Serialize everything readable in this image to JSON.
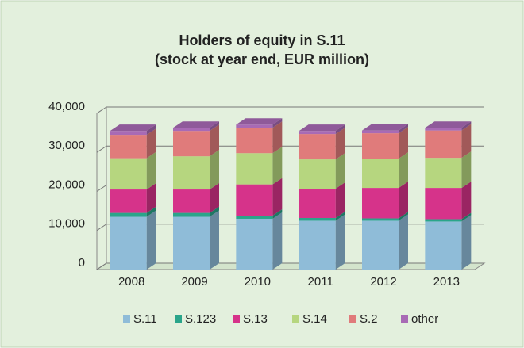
{
  "chart_data": {
    "type": "bar3d_stacked",
    "title": [
      "Holders of equity in S.11",
      "(stock at year end, EUR million)"
    ],
    "categories": [
      "2008",
      "2009",
      "2010",
      "2011",
      "2012",
      "2013"
    ],
    "series": [
      {
        "name": "S.11",
        "color": "#8fbcd8",
        "values": [
          13500,
          13500,
          13000,
          12500,
          12500,
          12300
        ]
      },
      {
        "name": "S.123",
        "color": "#2aa58a",
        "values": [
          1000,
          1000,
          800,
          700,
          600,
          600
        ]
      },
      {
        "name": "S.13",
        "color": "#d6338a",
        "values": [
          6000,
          6000,
          8000,
          7500,
          7800,
          8000
        ]
      },
      {
        "name": "S.14",
        "color": "#b6d67f",
        "values": [
          8000,
          8500,
          8000,
          7500,
          7500,
          7700
        ]
      },
      {
        "name": "S.2",
        "color": "#e07b7b",
        "values": [
          6000,
          6500,
          6500,
          6500,
          6500,
          7000
        ]
      },
      {
        "name": "other",
        "color": "#a86ab5",
        "values": [
          1000,
          800,
          800,
          800,
          700,
          700
        ]
      }
    ],
    "ylim": [
      0,
      40000
    ],
    "yticks": [
      0,
      {
        "value": 10000,
        "label": "10,000"
      },
      {
        "value": 20000,
        "label": "20,000"
      },
      {
        "value": 30000,
        "label": "30,000"
      },
      {
        "value": 40000,
        "label": "40,000"
      }
    ],
    "grid": true,
    "legend": "bottom"
  }
}
